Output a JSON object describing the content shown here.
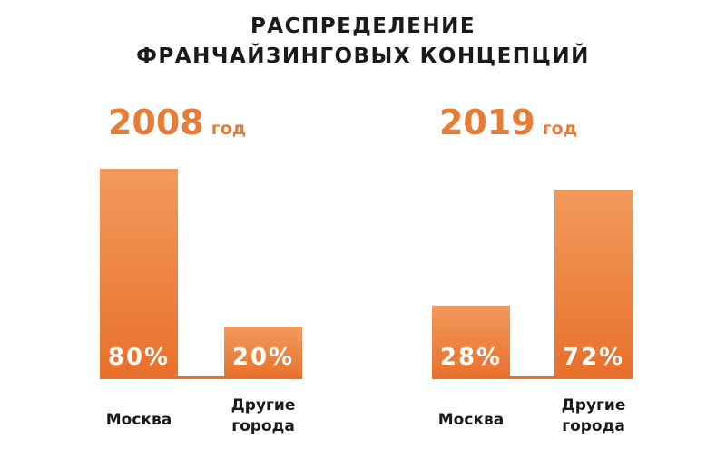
{
  "title_lines": [
    "РАСПРЕДЕЛЕНИЕ",
    "ФРАНЧАЙЗИНГОВЫХ КОНЦЕПЦИЙ"
  ],
  "colors": {
    "accent": "#e87b35",
    "bar_top": "#f29a5c",
    "bar_bottom": "#e8702a",
    "text": "#1a1a1a"
  },
  "chart_data": [
    {
      "type": "bar",
      "year": "2008",
      "year_unit": "год",
      "categories": [
        "Москва",
        "Другие города"
      ],
      "category_lines": [
        [
          "Москва"
        ],
        [
          "Другие",
          "города"
        ]
      ],
      "values": [
        80,
        20
      ],
      "value_labels": [
        "80%",
        "20%"
      ],
      "ylim": [
        0,
        100
      ]
    },
    {
      "type": "bar",
      "year": "2019",
      "year_unit": "год",
      "categories": [
        "Москва",
        "Другие города"
      ],
      "category_lines": [
        [
          "Москва"
        ],
        [
          "Другие",
          "города"
        ]
      ],
      "values": [
        28,
        72
      ],
      "value_labels": [
        "28%",
        "72%"
      ],
      "ylim": [
        0,
        100
      ]
    }
  ]
}
